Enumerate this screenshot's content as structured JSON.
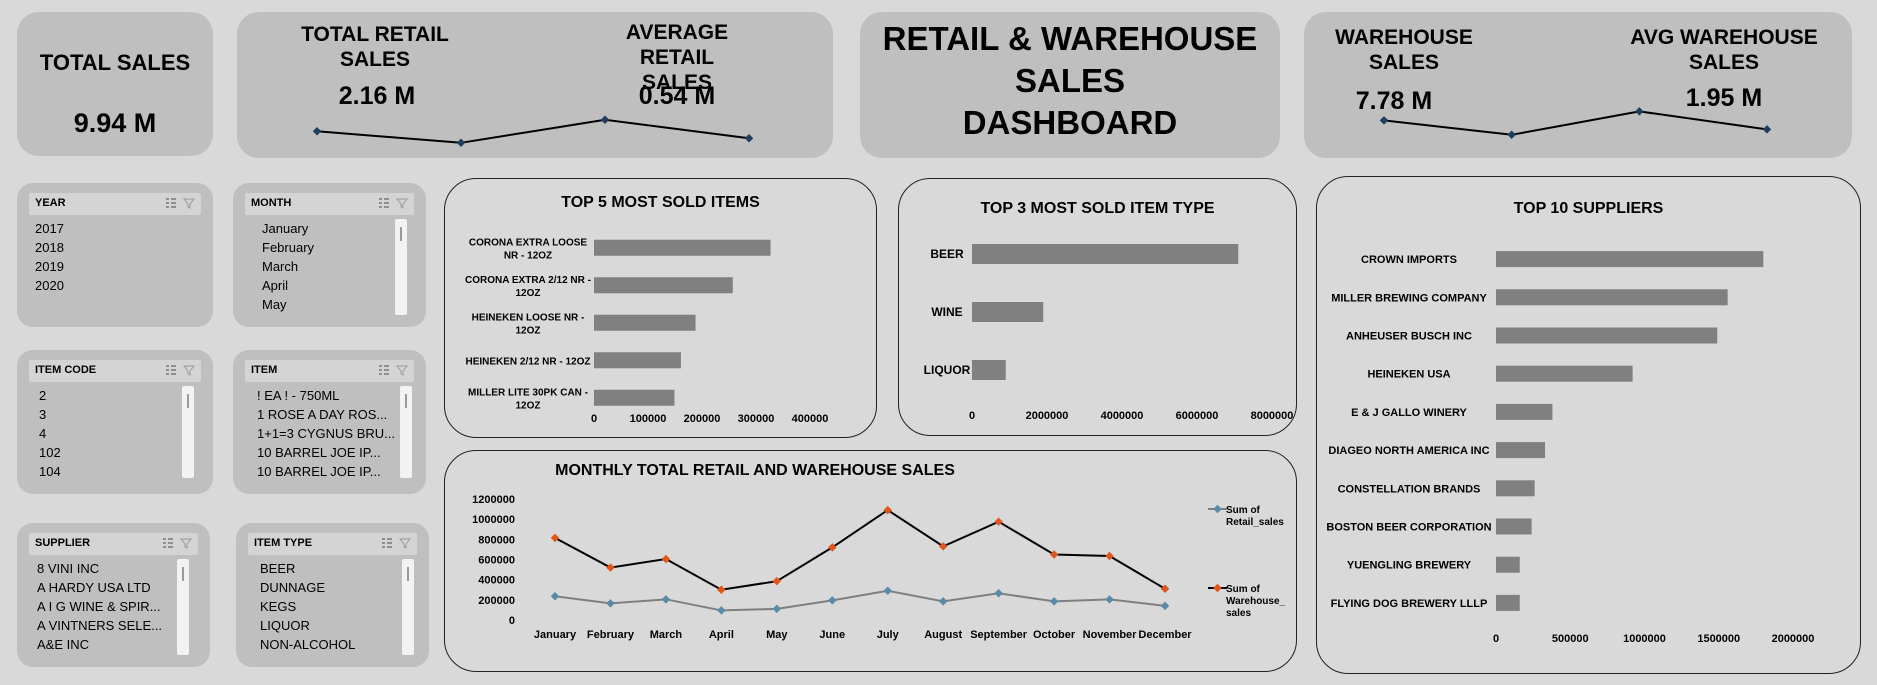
{
  "kpis": {
    "total_sales": {
      "title": "TOTAL SALES",
      "value": "9.94 M"
    },
    "total_retail": {
      "title_line1": "TOTAL RETAIL",
      "title_line2": "SALES",
      "value": "2.16 M"
    },
    "avg_retail": {
      "title_line1": "AVERAGE RETAIL",
      "title_line2": "SALES",
      "value": "0.54 M"
    },
    "warehouse": {
      "title_line1": "WAREHOUSE",
      "title_line2": "SALES",
      "value": "7.78 M"
    },
    "avg_warehouse": {
      "title_line1": "AVG WAREHOUSE",
      "title_line2": "SALES",
      "value": "1.95 M"
    }
  },
  "dashboard_title": {
    "line1": "RETAIL & WAREHOUSE",
    "line2": "SALES",
    "line3": "DASHBOARD"
  },
  "slicers": {
    "year": {
      "header": "YEAR",
      "items": [
        "2017",
        "2018",
        "2019",
        "2020"
      ]
    },
    "month": {
      "header": "MONTH",
      "items": [
        "January",
        "February",
        "March",
        "April",
        "May"
      ]
    },
    "item_code": {
      "header": "ITEM CODE",
      "items": [
        "2",
        "3",
        "4",
        "102",
        "104"
      ]
    },
    "item": {
      "header": "ITEM",
      "items": [
        "! EA ! - 750ML",
        "1 ROSE A DAY ROS...",
        "1+1=3 CYGNUS BRU...",
        "10 BARREL JOE IP...",
        "10 BARREL JOE IP..."
      ]
    },
    "supplier": {
      "header": "SUPPLIER",
      "items": [
        "8 VINI INC",
        "A HARDY USA LTD",
        "A I G WINE & SPIR...",
        "A VINTNERS SELE...",
        "A&E INC"
      ]
    },
    "item_type": {
      "header": "ITEM TYPE",
      "items": [
        "BEER",
        "DUNNAGE",
        "KEGS",
        "LIQUOR",
        "NON-ALCOHOL"
      ]
    }
  },
  "chart_data": [
    {
      "type": "bar",
      "title": "TOP 5 MOST SOLD ITEMS",
      "orientation": "horizontal",
      "categories": [
        [
          "CORONA EXTRA LOOSE",
          "NR - 12OZ"
        ],
        [
          "CORONA EXTRA 2/12 NR -",
          "12OZ"
        ],
        [
          "HEINEKEN LOOSE NR -",
          "12OZ"
        ],
        [
          "HEINEKEN 2/12 NR - 12OZ"
        ],
        [
          "MILLER LITE 30PK CAN -",
          "12OZ"
        ]
      ],
      "values": [
        327000,
        257000,
        188000,
        161000,
        149000
      ],
      "xlim": [
        0,
        400000
      ],
      "xticks": [
        "0",
        "100000",
        "200000",
        "300000",
        "400000"
      ]
    },
    {
      "type": "bar",
      "title": "TOP 3 MOST SOLD ITEM TYPE",
      "orientation": "horizontal",
      "categories": [
        "BEER",
        "WINE",
        "LIQUOR"
      ],
      "values": [
        7100000,
        1900000,
        900000
      ],
      "xlim": [
        0,
        8000000
      ],
      "xticks": [
        "0",
        "2000000",
        "4000000",
        "6000000",
        "8000000"
      ]
    },
    {
      "type": "bar",
      "title": "TOP 10 SUPPLIERS",
      "orientation": "horizontal",
      "categories": [
        "CROWN IMPORTS",
        "MILLER BREWING COMPANY",
        "ANHEUSER BUSCH INC",
        "HEINEKEN USA",
        "E & J GALLO WINERY",
        "DIAGEO NORTH AMERICA INC",
        "CONSTELLATION BRANDS",
        "BOSTON BEER CORPORATION",
        "YUENGLING BREWERY",
        "FLYING DOG BREWERY LLLP"
      ],
      "values": [
        1800000,
        1560000,
        1490000,
        920000,
        380000,
        330000,
        260000,
        240000,
        160000,
        160000
      ],
      "xlim": [
        0,
        2000000
      ],
      "xticks": [
        "0",
        "500000",
        "1000000",
        "1500000",
        "2000000"
      ]
    },
    {
      "type": "line",
      "title": "MONTHLY TOTAL RETAIL AND WAREHOUSE SALES",
      "categories": [
        "January",
        "February",
        "March",
        "April",
        "May",
        "June",
        "July",
        "August",
        "September",
        "October",
        "November",
        "December"
      ],
      "ylim": [
        0,
        1200000
      ],
      "yticks": [
        "0",
        "200000",
        "400000",
        "600000",
        "800000",
        "1000000",
        "1200000"
      ],
      "series": [
        {
          "name_line1": "Sum of",
          "name_line2": "Retail_sales",
          "values": [
            235000,
            165000,
            205000,
            95000,
            110000,
            195000,
            290000,
            185000,
            265000,
            185000,
            205000,
            140000
          ],
          "color": "#7f7f7f"
        },
        {
          "name_line1": "Sum of",
          "name_line2": "Warehouse_",
          "name_line3": "sales",
          "values": [
            815000,
            520000,
            605000,
            300000,
            385000,
            720000,
            1090000,
            730000,
            975000,
            650000,
            635000,
            310000
          ],
          "color": "#000000"
        }
      ]
    }
  ],
  "colors": {
    "bar": "#808080",
    "card": "#bfbfbf",
    "bg": "#d9d9d9",
    "retail_marker": "#5b8aa6",
    "warehouse_marker": "#e0561b",
    "spark_marker": "#1f3f5f"
  },
  "sparklines": {
    "retail": [
      0.45,
      0.2,
      0.7,
      0.3
    ],
    "warehouse": [
      0.6,
      0.2,
      0.85,
      0.35
    ]
  }
}
